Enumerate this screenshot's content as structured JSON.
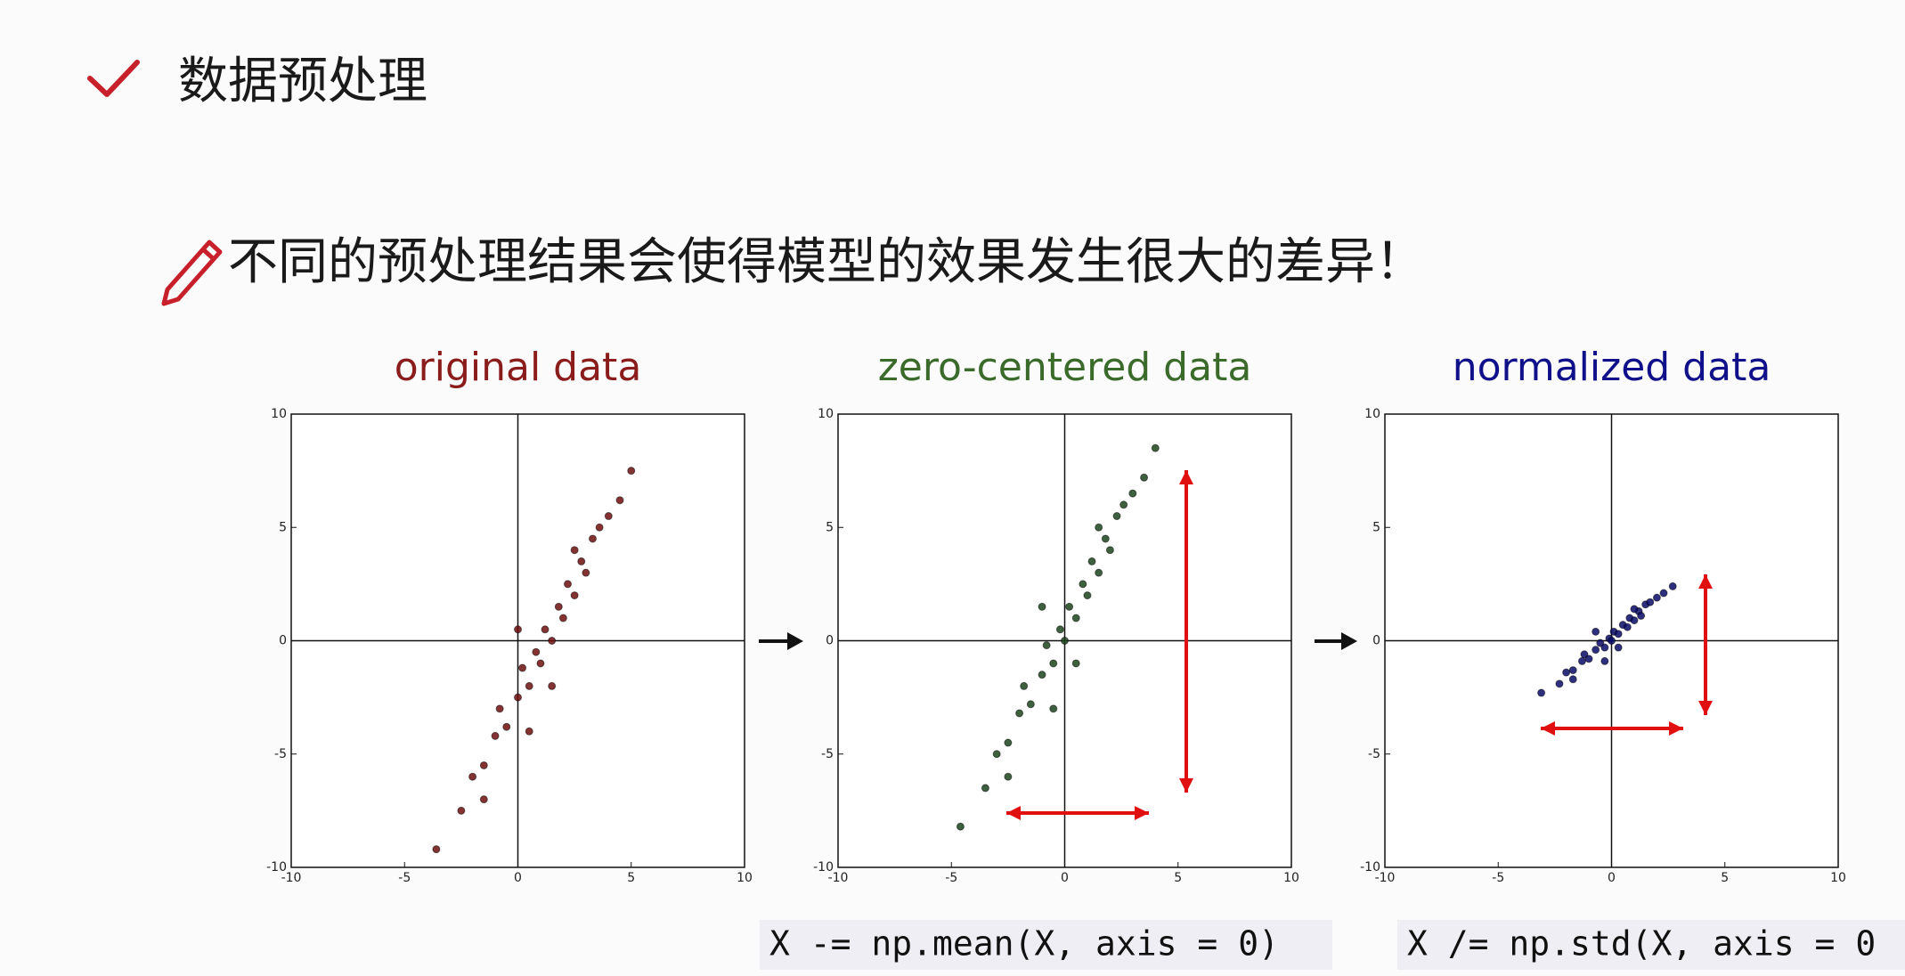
{
  "header": {
    "title": "数据预处理"
  },
  "subtitle": "不同的预处理结果会使得模型的效果发生很大的差异！",
  "chart_data": [
    {
      "type": "scatter",
      "title": "original data",
      "title_color": "#8b1c1c",
      "color": "#6e0e0e",
      "x": [
        -3.6,
        -2.5,
        -2,
        -1.5,
        -1,
        -0.8,
        -0.5,
        0,
        0.2,
        0.5,
        0.8,
        1,
        1.2,
        1.5,
        1.8,
        2,
        2.2,
        2.5,
        2.8,
        3,
        3.3,
        3.6,
        4,
        4.5,
        5,
        0.5,
        1.5,
        -1.5,
        2.5,
        0
      ],
      "values": [
        -9.2,
        -7.5,
        -6,
        -5.5,
        -4.2,
        -3,
        -3.8,
        -2.5,
        -1.2,
        -2,
        -0.5,
        -1,
        0.5,
        0,
        1.5,
        1,
        2.5,
        2,
        3.5,
        3,
        4.5,
        5,
        5.5,
        6.2,
        7.5,
        -4,
        -2,
        -7,
        4,
        0.5
      ],
      "xlim": [
        -10,
        10
      ],
      "ylim": [
        -10,
        10
      ],
      "xticks": [
        -10,
        -5,
        0,
        5,
        10
      ],
      "yticks": [
        -10,
        -5,
        0,
        5,
        10
      ]
    },
    {
      "type": "scatter",
      "title": "zero-centered data",
      "title_color": "#3b6b2b",
      "color": "#1c441c",
      "x": [
        -4.6,
        -3.5,
        -3,
        -2.5,
        -2,
        -1.8,
        -1.5,
        -1,
        -0.8,
        -0.5,
        -0.2,
        0,
        0.2,
        0.5,
        0.8,
        1,
        1.2,
        1.5,
        1.8,
        2,
        2.3,
        2.6,
        3,
        3.5,
        4,
        -0.5,
        0.5,
        -2.5,
        1.5,
        -1
      ],
      "values": [
        -8.2,
        -6.5,
        -5,
        -4.5,
        -3.2,
        -2,
        -2.8,
        -1.5,
        -0.2,
        -1,
        0.5,
        0,
        1.5,
        1,
        2.5,
        2,
        3.5,
        3,
        4.5,
        4,
        5.5,
        6,
        6.5,
        7.2,
        8.5,
        -3,
        -1,
        -6,
        5,
        1.5
      ],
      "xlim": [
        -10,
        10
      ],
      "ylim": [
        -10,
        10
      ],
      "xticks": [
        -10,
        -5,
        0,
        5,
        10
      ],
      "yticks": [
        -10,
        -5,
        0,
        5,
        10
      ]
    },
    {
      "type": "scatter",
      "title": "normalized data",
      "title_color": "#10108a",
      "color": "#0a0a6a",
      "x": [
        -3.1,
        -2.3,
        -2,
        -1.7,
        -1.3,
        -1.2,
        -1,
        -0.7,
        -0.5,
        -0.3,
        -0.1,
        0,
        0.1,
        0.3,
        0.5,
        0.7,
        0.8,
        1,
        1.2,
        1.3,
        1.5,
        1.7,
        2,
        2.3,
        2.7,
        -0.3,
        0.3,
        -1.7,
        1,
        -0.7
      ],
      "values": [
        -2.3,
        -1.9,
        -1.4,
        -1.3,
        -0.9,
        -0.6,
        -0.8,
        -0.4,
        -0.1,
        -0.3,
        0.1,
        0,
        0.4,
        0.3,
        0.7,
        0.6,
        1,
        0.9,
        1.3,
        1.1,
        1.6,
        1.7,
        1.9,
        2.1,
        2.4,
        -0.9,
        -0.3,
        -1.7,
        1.4,
        0.4
      ],
      "xlim": [
        -10,
        10
      ],
      "ylim": [
        -10,
        10
      ],
      "xticks": [
        -10,
        -5,
        0,
        5,
        10
      ],
      "yticks": [
        -10,
        -5,
        0,
        5,
        10
      ]
    }
  ],
  "code": [
    "X -= np.mean(X, axis = 0)",
    "X /= np.std(X, axis = 0"
  ]
}
